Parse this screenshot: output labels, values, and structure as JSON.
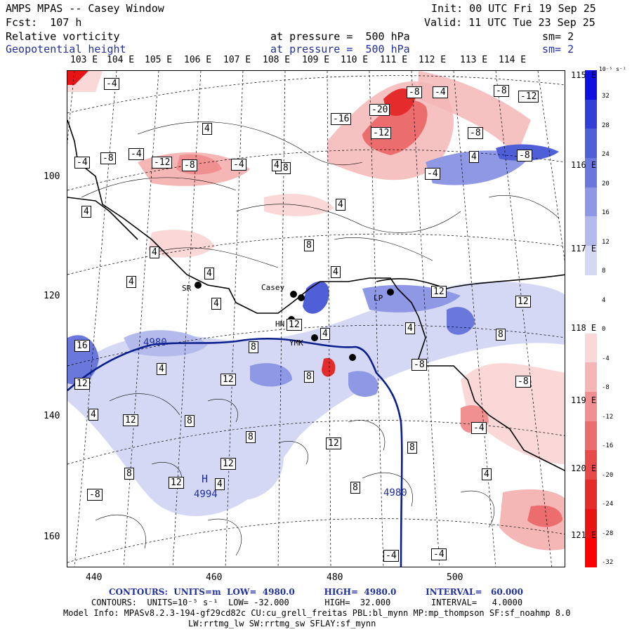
{
  "header": {
    "title": "AMPS MPAS -- Casey Window",
    "init": "Init: 00 UTC Fri 19 Sep 25",
    "fcst": "Fcst:  107 h",
    "valid": "Valid: 11 UTC Tue 23 Sep 25",
    "field1": "Relative vorticity",
    "field1_level": "at pressure =  500 hPa",
    "field1_sm": "sm= 2",
    "field2": "Geopotential height",
    "field2_level": "at pressure =  500 hPa",
    "field2_sm": "sm= 2"
  },
  "longitude_labels": [
    "103 E",
    "104 E",
    "105 E",
    "106 E",
    "107 E",
    "108 E",
    "109 E",
    "110 E",
    "111 E",
    "112 E",
    "113 E",
    "114 E"
  ],
  "latitude_labels": [
    "115 E",
    "116 E",
    "117 E",
    "118 E",
    "119 E",
    "120 E",
    "121 E"
  ],
  "y_axis": [
    "100",
    "120",
    "140",
    "160"
  ],
  "x_axis": [
    "440",
    "460",
    "480",
    "500"
  ],
  "stations": [
    "SR",
    "Casey",
    "HN",
    "YMK",
    "LP"
  ],
  "height_labels": {
    "h_symbol": "H",
    "h_value": "4994",
    "contour_a": "4980",
    "contour_b": "4980"
  },
  "vort_labels": [
    "-4",
    "-4",
    "-8",
    "-4",
    "-12",
    "-8",
    "-4",
    "-8",
    "-16",
    "-20",
    "-12",
    "-8",
    "-4",
    "-8",
    "-4",
    "-8",
    "-12",
    "-8",
    "4",
    "4",
    "4",
    "4",
    "4",
    "4",
    "8",
    "4",
    "4",
    "4",
    "4",
    "12",
    "12",
    "4",
    "12",
    "8",
    "8",
    "16",
    "12",
    "4",
    "12",
    "4",
    "12",
    "8",
    "8",
    "12",
    "12",
    "8",
    "12",
    "4",
    "8",
    "-8",
    "-4",
    "-4",
    "-8",
    "4",
    "-8",
    "4",
    "8",
    "-4",
    "8"
  ],
  "colorbar": {
    "units": "10⁻⁵ s⁻¹",
    "ticks": [
      "32",
      "28",
      "24",
      "20",
      "16",
      "12",
      "8",
      "4",
      "0",
      "-4",
      "-8",
      "-12",
      "-16",
      "-20",
      "-24",
      "-28",
      "-32"
    ],
    "colors": [
      "#1010e0",
      "#2f3fd8",
      "#4f5fd8",
      "#6a78dc",
      "#8e98e4",
      "#b4bbec",
      "#d4d8f5",
      "#ffffff",
      "#ffffff",
      "#fad8d8",
      "#f5b6b6",
      "#f09090",
      "#ec6d6d",
      "#e84a4a",
      "#e52c2c",
      "#e81414",
      "#ff0000"
    ]
  },
  "footer": {
    "contours1": "CONTOURS:  UNITS=m  LOW=  4980.0          HIGH=  4980.0          INTERVAL=   60.000",
    "contours2": "CONTOURS:  UNITS=10⁻⁵ s⁻¹  LOW= -32.000       HIGH=  32.000        INTERVAL=   4.0000",
    "model1": "Model Info: MPASv8.2.3-194-gf29cd82c CU:cu_grell_freitas PBL:bl_mynn MP:mp_thompson SF:sf_noahmp 8.0",
    "model2": "LW:rrtmg_lw SW:rrtmg_sw SFLAY:sf_mynn"
  }
}
